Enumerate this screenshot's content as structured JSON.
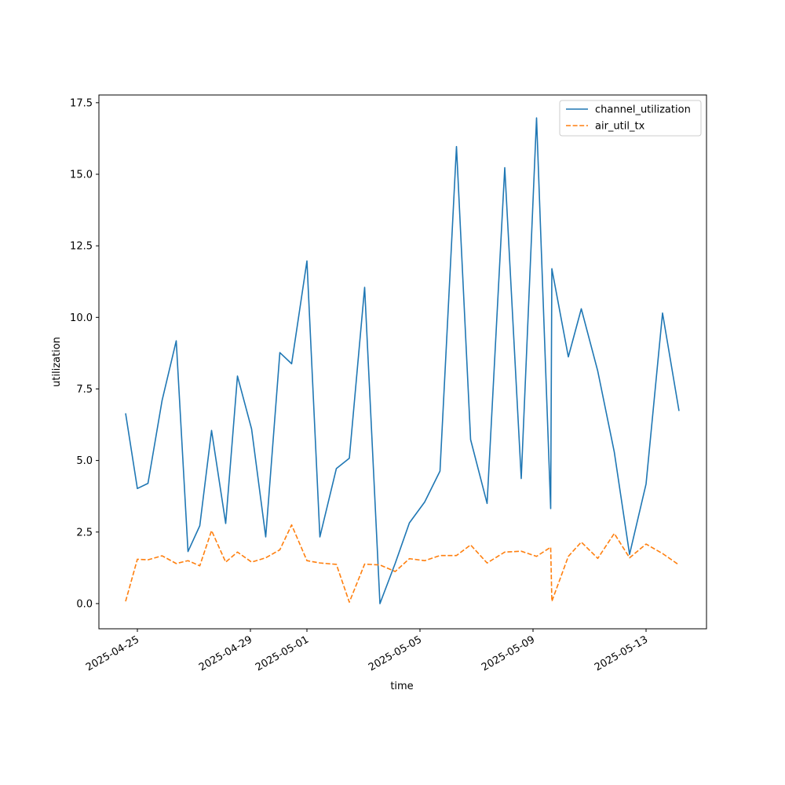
{
  "chart_data": {
    "type": "line",
    "xlabel": "time",
    "ylabel": "utilization",
    "x": [
      "2025-04-24T14:00",
      "2025-04-25T00:00",
      "2025-04-25T09:00",
      "2025-04-25T21:00",
      "2025-04-26T09:00",
      "2025-04-26T19:00",
      "2025-04-27T05:00",
      "2025-04-27T15:00",
      "2025-04-28T03:00",
      "2025-04-28T13:00",
      "2025-04-29T01:00",
      "2025-04-29T13:00",
      "2025-04-30T01:00",
      "2025-04-30T11:00",
      "2025-05-01T00:00",
      "2025-05-01T11:00",
      "2025-05-02T01:00",
      "2025-05-02T12:00",
      "2025-05-03T01:00",
      "2025-05-03T14:00",
      "2025-05-04T03:00",
      "2025-05-04T15:00",
      "2025-05-05T04:00",
      "2025-05-05T17:00",
      "2025-05-06T07:00",
      "2025-05-06T19:00",
      "2025-05-07T09:00",
      "2025-05-08T00:00",
      "2025-05-08T14:00",
      "2025-05-09T03:00",
      "2025-05-09T15:00",
      "2025-05-09T16:00",
      "2025-05-10T06:00",
      "2025-05-10T17:00",
      "2025-05-11T07:00",
      "2025-05-11T21:00",
      "2025-05-12T10:00",
      "2025-05-13T00:00",
      "2025-05-13T14:00",
      "2025-05-14T04:00"
    ],
    "series": [
      {
        "name": "channel_utilization",
        "color": "#1f77b4",
        "linestyle": "solid",
        "values": [
          6.65,
          4.02,
          4.2,
          7.1,
          9.18,
          1.82,
          2.72,
          6.05,
          2.8,
          7.95,
          6.1,
          2.33,
          8.77,
          8.38,
          11.97,
          2.33,
          4.72,
          5.08,
          11.05,
          0.0,
          1.41,
          2.82,
          3.55,
          4.63,
          15.97,
          5.73,
          3.5,
          15.23,
          4.37,
          16.97,
          3.32,
          11.7,
          8.62,
          10.3,
          8.12,
          5.3,
          1.72,
          4.18,
          10.15,
          6.73
        ]
      },
      {
        "name": "air_util_tx",
        "color": "#ff7f0e",
        "linestyle": "dashed",
        "values": [
          0.08,
          1.55,
          1.53,
          1.67,
          1.4,
          1.5,
          1.32,
          2.55,
          1.45,
          1.8,
          1.45,
          1.6,
          1.88,
          2.75,
          1.5,
          1.42,
          1.37,
          0.05,
          1.38,
          1.35,
          1.12,
          1.57,
          1.5,
          1.68,
          1.68,
          2.05,
          1.42,
          1.8,
          1.83,
          1.65,
          1.97,
          0.08,
          1.65,
          2.15,
          1.58,
          2.45,
          1.6,
          2.08,
          1.75,
          1.35
        ]
      }
    ],
    "xlim": [
      "2025-04-23T15:20",
      "2025-05-15T03:20"
    ],
    "xticks": [
      "2025-04-25",
      "2025-04-29",
      "2025-05-01",
      "2025-05-05",
      "2025-05-09",
      "2025-05-13"
    ],
    "ylim": [
      -0.88,
      17.77
    ],
    "yticks": [
      {
        "value": 0,
        "label": "0.0"
      },
      2.5,
      {
        "value": 5,
        "label": "5.0"
      },
      7.5,
      {
        "value": 10,
        "label": "10.0"
      },
      12.5,
      {
        "value": 15,
        "label": "15.0"
      },
      17.5
    ],
    "legend": "upper right"
  }
}
